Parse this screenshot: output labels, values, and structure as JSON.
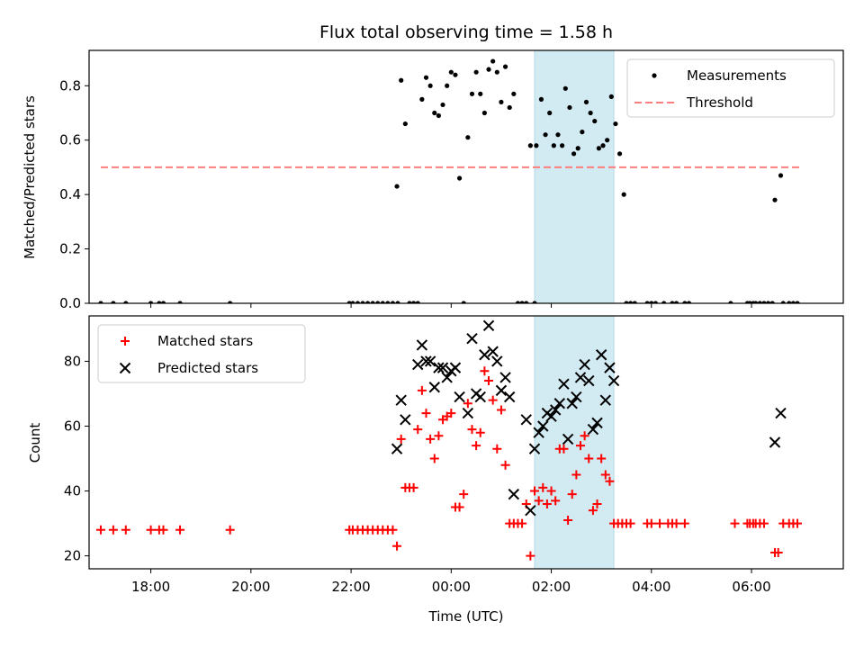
{
  "chart_data": [
    {
      "type": "scatter",
      "title": "Flux total observing time = 1.58 h",
      "xlabel": "",
      "ylabel": "Matched/Predicted stars",
      "xlim": [
        "16:46",
        "07:50"
      ],
      "ylim": [
        0,
        0.93
      ],
      "yticks": [
        "0.0",
        "0.2",
        "0.4",
        "0.6",
        "0.8"
      ],
      "legend_position": "top-right",
      "shaded_span": [
        "01:40",
        "03:15"
      ],
      "shaded_color": "#add8e6",
      "series": [
        {
          "name": "Measurements",
          "marker": "dot",
          "color": "#000000",
          "points": [
            [
              "17:00",
              0
            ],
            [
              "17:15",
              0
            ],
            [
              "17:30",
              0
            ],
            [
              "18:00",
              0
            ],
            [
              "18:10",
              0
            ],
            [
              "18:15",
              0
            ],
            [
              "18:35",
              0
            ],
            [
              "19:35",
              0
            ],
            [
              "21:58",
              0
            ],
            [
              "22:02",
              0
            ],
            [
              "22:08",
              0
            ],
            [
              "22:14",
              0
            ],
            [
              "22:20",
              0
            ],
            [
              "22:26",
              0
            ],
            [
              "22:32",
              0
            ],
            [
              "22:38",
              0
            ],
            [
              "22:44",
              0
            ],
            [
              "22:50",
              0
            ],
            [
              "22:56",
              0
            ],
            [
              "23:10",
              0
            ],
            [
              "23:15",
              0
            ],
            [
              "23:20",
              0
            ],
            [
              "22:55",
              0.43
            ],
            [
              "23:00",
              0.82
            ],
            [
              "23:05",
              0.66
            ],
            [
              "23:25",
              0.75
            ],
            [
              "23:30",
              0.83
            ],
            [
              "23:35",
              0.8
            ],
            [
              "23:40",
              0.7
            ],
            [
              "23:45",
              0.69
            ],
            [
              "23:50",
              0.73
            ],
            [
              "23:55",
              0.8
            ],
            [
              "00:00",
              0.85
            ],
            [
              "00:05",
              0.84
            ],
            [
              "00:10",
              0.46
            ],
            [
              "00:15",
              0
            ],
            [
              "00:20",
              0.61
            ],
            [
              "00:25",
              0.77
            ],
            [
              "00:30",
              0.85
            ],
            [
              "00:35",
              0.77
            ],
            [
              "00:40",
              0.7
            ],
            [
              "00:45",
              0.86
            ],
            [
              "00:50",
              0.89
            ],
            [
              "00:55",
              0.85
            ],
            [
              "01:00",
              0.74
            ],
            [
              "01:05",
              0.87
            ],
            [
              "01:10",
              0.72
            ],
            [
              "01:15",
              0.77
            ],
            [
              "01:20",
              0
            ],
            [
              "01:25",
              0
            ],
            [
              "01:30",
              0
            ],
            [
              "01:35",
              0.58
            ],
            [
              "01:40",
              0
            ],
            [
              "01:42",
              0.58
            ],
            [
              "01:48",
              0.75
            ],
            [
              "01:53",
              0.62
            ],
            [
              "01:58",
              0.7
            ],
            [
              "02:03",
              0.58
            ],
            [
              "02:08",
              0.62
            ],
            [
              "02:13",
              0.58
            ],
            [
              "02:17",
              0.79
            ],
            [
              "02:22",
              0.72
            ],
            [
              "02:27",
              0.55
            ],
            [
              "02:32",
              0.57
            ],
            [
              "02:37",
              0.63
            ],
            [
              "02:42",
              0.74
            ],
            [
              "02:47",
              0.7
            ],
            [
              "02:52",
              0.67
            ],
            [
              "02:57",
              0.57
            ],
            [
              "03:02",
              0.58
            ],
            [
              "03:07",
              0.6
            ],
            [
              "03:12",
              0.76
            ],
            [
              "03:17",
              0.66
            ],
            [
              "03:22",
              0.55
            ],
            [
              "03:27",
              0.4
            ],
            [
              "03:30",
              0
            ],
            [
              "03:35",
              0
            ],
            [
              "03:40",
              0
            ],
            [
              "03:55",
              0
            ],
            [
              "04:00",
              0
            ],
            [
              "04:05",
              0
            ],
            [
              "04:15",
              0
            ],
            [
              "04:25",
              0
            ],
            [
              "04:30",
              0
            ],
            [
              "04:40",
              0
            ],
            [
              "04:45",
              0
            ],
            [
              "05:35",
              0
            ],
            [
              "05:55",
              0
            ],
            [
              "05:58",
              0
            ],
            [
              "06:02",
              0
            ],
            [
              "06:05",
              0
            ],
            [
              "06:10",
              0
            ],
            [
              "06:15",
              0
            ],
            [
              "06:20",
              0
            ],
            [
              "06:25",
              0
            ],
            [
              "06:28",
              0.38
            ],
            [
              "06:35",
              0.47
            ],
            [
              "06:38",
              0
            ],
            [
              "06:45",
              0
            ],
            [
              "06:50",
              0
            ],
            [
              "06:55",
              0
            ]
          ]
        },
        {
          "name": "Threshold",
          "marker": "dashed-line",
          "color": "#ff7f7f",
          "points": [
            [
              "17:00",
              0.5
            ],
            [
              "07:00",
              0.5
            ]
          ]
        }
      ]
    },
    {
      "type": "scatter",
      "title": "",
      "xlabel": "Time (UTC)",
      "ylabel": "Count",
      "xlim": [
        "16:46",
        "07:50"
      ],
      "ylim": [
        16,
        94
      ],
      "yticks": [
        "20",
        "40",
        "60",
        "80"
      ],
      "xticks": [
        "18:00",
        "20:00",
        "22:00",
        "00:00",
        "02:00",
        "04:00",
        "06:00"
      ],
      "legend_position": "top-left",
      "shaded_span": [
        "01:40",
        "03:15"
      ],
      "shaded_color": "#add8e6",
      "series": [
        {
          "name": "Matched stars",
          "marker": "plus",
          "color": "#ff0000",
          "points": [
            [
              "17:00",
              28
            ],
            [
              "17:15",
              28
            ],
            [
              "17:30",
              28
            ],
            [
              "18:00",
              28
            ],
            [
              "18:10",
              28
            ],
            [
              "18:15",
              28
            ],
            [
              "18:35",
              28
            ],
            [
              "19:35",
              28
            ],
            [
              "21:58",
              28
            ],
            [
              "22:02",
              28
            ],
            [
              "22:08",
              28
            ],
            [
              "22:14",
              28
            ],
            [
              "22:20",
              28
            ],
            [
              "22:26",
              28
            ],
            [
              "22:32",
              28
            ],
            [
              "22:38",
              28
            ],
            [
              "22:44",
              28
            ],
            [
              "22:50",
              28
            ],
            [
              "22:55",
              23
            ],
            [
              "23:00",
              56
            ],
            [
              "23:05",
              41
            ],
            [
              "23:10",
              41
            ],
            [
              "23:15",
              41
            ],
            [
              "23:20",
              59
            ],
            [
              "23:25",
              71
            ],
            [
              "23:30",
              64
            ],
            [
              "23:35",
              56
            ],
            [
              "23:40",
              50
            ],
            [
              "23:45",
              57
            ],
            [
              "23:50",
              62
            ],
            [
              "23:55",
              63
            ],
            [
              "00:00",
              64
            ],
            [
              "00:05",
              35
            ],
            [
              "00:10",
              35
            ],
            [
              "00:15",
              39
            ],
            [
              "00:20",
              67
            ],
            [
              "00:25",
              59
            ],
            [
              "00:30",
              54
            ],
            [
              "00:35",
              58
            ],
            [
              "00:40",
              77
            ],
            [
              "00:45",
              74
            ],
            [
              "00:50",
              68
            ],
            [
              "00:55",
              53
            ],
            [
              "01:00",
              65
            ],
            [
              "01:05",
              48
            ],
            [
              "01:10",
              30
            ],
            [
              "01:15",
              30
            ],
            [
              "01:20",
              30
            ],
            [
              "01:25",
              30
            ],
            [
              "01:30",
              36
            ],
            [
              "01:35",
              20
            ],
            [
              "01:40",
              40
            ],
            [
              "01:45",
              37
            ],
            [
              "01:50",
              41
            ],
            [
              "01:55",
              36
            ],
            [
              "02:00",
              40
            ],
            [
              "02:05",
              37
            ],
            [
              "02:10",
              53
            ],
            [
              "02:15",
              53
            ],
            [
              "02:20",
              31
            ],
            [
              "02:25",
              39
            ],
            [
              "02:30",
              45
            ],
            [
              "02:35",
              54
            ],
            [
              "02:40",
              57
            ],
            [
              "02:45",
              50
            ],
            [
              "02:50",
              34
            ],
            [
              "02:55",
              36
            ],
            [
              "03:00",
              50
            ],
            [
              "03:05",
              45
            ],
            [
              "03:10",
              43
            ],
            [
              "03:15",
              30
            ],
            [
              "03:20",
              30
            ],
            [
              "03:25",
              30
            ],
            [
              "03:30",
              30
            ],
            [
              "03:35",
              30
            ],
            [
              "03:55",
              30
            ],
            [
              "04:00",
              30
            ],
            [
              "04:10",
              30
            ],
            [
              "04:20",
              30
            ],
            [
              "04:25",
              30
            ],
            [
              "04:30",
              30
            ],
            [
              "04:40",
              30
            ],
            [
              "05:40",
              30
            ],
            [
              "05:55",
              30
            ],
            [
              "05:58",
              30
            ],
            [
              "06:02",
              30
            ],
            [
              "06:05",
              30
            ],
            [
              "06:10",
              30
            ],
            [
              "06:15",
              30
            ],
            [
              "06:28",
              21
            ],
            [
              "06:32",
              21
            ],
            [
              "06:38",
              30
            ],
            [
              "06:45",
              30
            ],
            [
              "06:50",
              30
            ],
            [
              "06:55",
              30
            ]
          ]
        },
        {
          "name": "Predicted stars",
          "marker": "x",
          "color": "#000000",
          "points": [
            [
              "22:55",
              53
            ],
            [
              "23:00",
              68
            ],
            [
              "23:05",
              62
            ],
            [
              "23:20",
              79
            ],
            [
              "23:25",
              85
            ],
            [
              "23:30",
              80
            ],
            [
              "23:35",
              80
            ],
            [
              "23:40",
              72
            ],
            [
              "23:45",
              78
            ],
            [
              "23:50",
              78
            ],
            [
              "23:55",
              75
            ],
            [
              "00:00",
              77
            ],
            [
              "00:05",
              78
            ],
            [
              "00:10",
              69
            ],
            [
              "00:20",
              64
            ],
            [
              "00:25",
              87
            ],
            [
              "00:30",
              70
            ],
            [
              "00:35",
              69
            ],
            [
              "00:40",
              82
            ],
            [
              "00:45",
              91
            ],
            [
              "00:50",
              83
            ],
            [
              "00:55",
              80
            ],
            [
              "01:00",
              71
            ],
            [
              "01:05",
              75
            ],
            [
              "01:10",
              69
            ],
            [
              "01:15",
              39
            ],
            [
              "01:30",
              62
            ],
            [
              "01:35",
              34
            ],
            [
              "01:40",
              53
            ],
            [
              "01:45",
              58
            ],
            [
              "01:50",
              60
            ],
            [
              "01:55",
              64
            ],
            [
              "02:00",
              63
            ],
            [
              "02:05",
              65
            ],
            [
              "02:10",
              67
            ],
            [
              "02:15",
              73
            ],
            [
              "02:20",
              56
            ],
            [
              "02:25",
              67
            ],
            [
              "02:30",
              69
            ],
            [
              "02:35",
              75
            ],
            [
              "02:40",
              79
            ],
            [
              "02:45",
              74
            ],
            [
              "02:50",
              59
            ],
            [
              "02:55",
              61
            ],
            [
              "03:00",
              82
            ],
            [
              "03:05",
              68
            ],
            [
              "03:10",
              78
            ],
            [
              "03:15",
              74
            ],
            [
              "06:28",
              55
            ],
            [
              "06:35",
              64
            ]
          ]
        }
      ]
    }
  ]
}
